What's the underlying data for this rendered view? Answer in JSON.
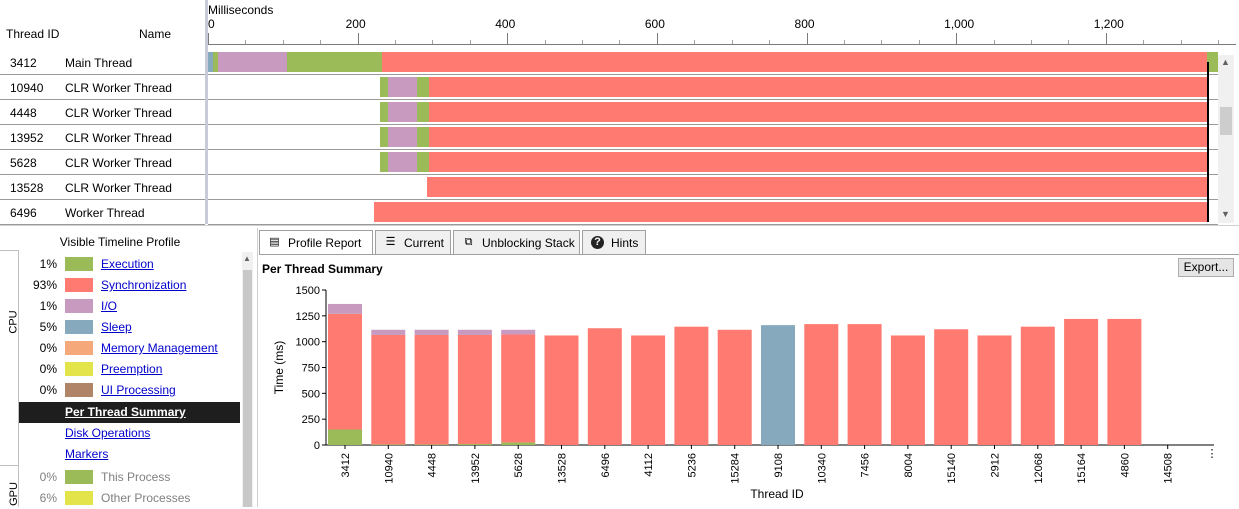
{
  "timeline": {
    "headers": {
      "thread_id": "Thread ID",
      "name": "Name"
    },
    "ruler_title": "Milliseconds",
    "ruler": {
      "min": 0,
      "max": 1350,
      "ticks": [
        0,
        200,
        400,
        600,
        800,
        1000,
        1200
      ],
      "tick_labels": [
        "0",
        "200",
        "400",
        "600",
        "800",
        "1,000",
        "1,200"
      ]
    },
    "cursor_ms": 1335,
    "threads": [
      {
        "id": "3412",
        "name": "Main Thread",
        "segments": [
          {
            "from": 0,
            "to": 7,
            "state": "sleep"
          },
          {
            "from": 7,
            "to": 14,
            "state": "execution"
          },
          {
            "from": 14,
            "to": 105,
            "state": "io"
          },
          {
            "from": 105,
            "to": 232,
            "state": "execution"
          },
          {
            "from": 232,
            "to": 1335,
            "state": "synchronization"
          },
          {
            "from": 1335,
            "to": 1350,
            "state": "execution"
          }
        ]
      },
      {
        "id": "10940",
        "name": "CLR Worker Thread",
        "segments": [
          {
            "from": 230,
            "to": 240,
            "state": "execution"
          },
          {
            "from": 240,
            "to": 280,
            "state": "io"
          },
          {
            "from": 280,
            "to": 295,
            "state": "execution"
          },
          {
            "from": 295,
            "to": 1335,
            "state": "synchronization"
          }
        ]
      },
      {
        "id": "4448",
        "name": "CLR Worker Thread",
        "segments": [
          {
            "from": 230,
            "to": 240,
            "state": "execution"
          },
          {
            "from": 240,
            "to": 280,
            "state": "io"
          },
          {
            "from": 280,
            "to": 295,
            "state": "execution"
          },
          {
            "from": 295,
            "to": 1335,
            "state": "synchronization"
          }
        ]
      },
      {
        "id": "13952",
        "name": "CLR Worker Thread",
        "segments": [
          {
            "from": 230,
            "to": 240,
            "state": "execution"
          },
          {
            "from": 240,
            "to": 280,
            "state": "io"
          },
          {
            "from": 280,
            "to": 295,
            "state": "execution"
          },
          {
            "from": 295,
            "to": 1335,
            "state": "synchronization"
          }
        ]
      },
      {
        "id": "5628",
        "name": "CLR Worker Thread",
        "segments": [
          {
            "from": 230,
            "to": 240,
            "state": "execution"
          },
          {
            "from": 240,
            "to": 280,
            "state": "io"
          },
          {
            "from": 280,
            "to": 295,
            "state": "execution"
          },
          {
            "from": 295,
            "to": 1335,
            "state": "synchronization"
          }
        ]
      },
      {
        "id": "13528",
        "name": "CLR Worker Thread",
        "segments": [
          {
            "from": 293,
            "to": 1335,
            "state": "synchronization"
          }
        ]
      },
      {
        "id": "6496",
        "name": "Worker Thread",
        "segments": [
          {
            "from": 222,
            "to": 1335,
            "state": "synchronization"
          }
        ]
      }
    ]
  },
  "legend": {
    "title": "Visible Timeline Profile",
    "cpu_label": "CPU",
    "gpu_label": "GPU",
    "items": [
      {
        "pct": "1%",
        "label": "Execution",
        "color": "#9bbb59"
      },
      {
        "pct": "93%",
        "label": "Synchronization",
        "color": "#ff7a70"
      },
      {
        "pct": "1%",
        "label": "I/O",
        "color": "#c89ac0"
      },
      {
        "pct": "5%",
        "label": "Sleep",
        "color": "#86a9bd"
      },
      {
        "pct": "0%",
        "label": "Memory Management",
        "color": "#f5a87a"
      },
      {
        "pct": "0%",
        "label": "Preemption",
        "color": "#e3e34a"
      },
      {
        "pct": "0%",
        "label": "UI Processing",
        "color": "#b08466"
      }
    ],
    "links": [
      "Per Thread Summary",
      "Disk Operations",
      "Markers"
    ],
    "selected_link": "Per Thread Summary",
    "gpu_items": [
      {
        "pct": "0%",
        "label": "This Process",
        "color": "#9bbb59"
      },
      {
        "pct": "6%",
        "label": "Other Processes",
        "color": "#e3e34a"
      }
    ]
  },
  "colors": {
    "execution": "#9bbb59",
    "synchronization": "#ff7a70",
    "io": "#c89ac0",
    "sleep": "#86a9bd"
  },
  "report": {
    "tabs": [
      {
        "label": "Profile Report",
        "icon": "report-icon",
        "active": true
      },
      {
        "label": "Current",
        "icon": "current-stack-icon",
        "active": false
      },
      {
        "label": "Unblocking Stack",
        "icon": "unblocking-stack-icon",
        "active": false
      },
      {
        "label": "Hints",
        "icon": "help-icon",
        "active": false
      }
    ],
    "title": "Per Thread Summary",
    "export_label": "Export...",
    "more_glyph": "⋮"
  },
  "chart_data": {
    "type": "bar",
    "stacked": true,
    "xlabel": "Thread ID",
    "ylabel": "Time (ms)",
    "ylim": [
      0,
      1500
    ],
    "yticks": [
      0,
      250,
      500,
      750,
      1000,
      1250,
      1500
    ],
    "grid": false,
    "categories": [
      "3412",
      "10940",
      "4448",
      "13952",
      "5628",
      "13528",
      "6496",
      "4112",
      "5236",
      "15284",
      "9108",
      "10340",
      "7456",
      "8004",
      "15140",
      "2912",
      "12068",
      "15164",
      "4860",
      "14508"
    ],
    "series": [
      {
        "name": "Execution",
        "color": "#9bbb59",
        "values": [
          150,
          5,
          5,
          10,
          25,
          0,
          0,
          0,
          0,
          0,
          0,
          0,
          0,
          0,
          0,
          0,
          0,
          0,
          0,
          0
        ]
      },
      {
        "name": "Synchronization",
        "color": "#ff7a70",
        "values": [
          1120,
          1060,
          1060,
          1055,
          1045,
          1060,
          1130,
          1060,
          1145,
          1115,
          0,
          1170,
          1170,
          1060,
          1120,
          1060,
          1145,
          1220,
          1220,
          0
        ]
      },
      {
        "name": "I/O",
        "color": "#c89ac0",
        "values": [
          95,
          50,
          50,
          50,
          45,
          0,
          0,
          0,
          0,
          0,
          0,
          0,
          0,
          0,
          0,
          0,
          0,
          0,
          0,
          0
        ]
      },
      {
        "name": "Sleep",
        "color": "#86a9bd",
        "values": [
          0,
          0,
          0,
          0,
          0,
          0,
          0,
          0,
          0,
          0,
          1160,
          0,
          0,
          0,
          0,
          0,
          0,
          0,
          0,
          0
        ]
      }
    ]
  }
}
